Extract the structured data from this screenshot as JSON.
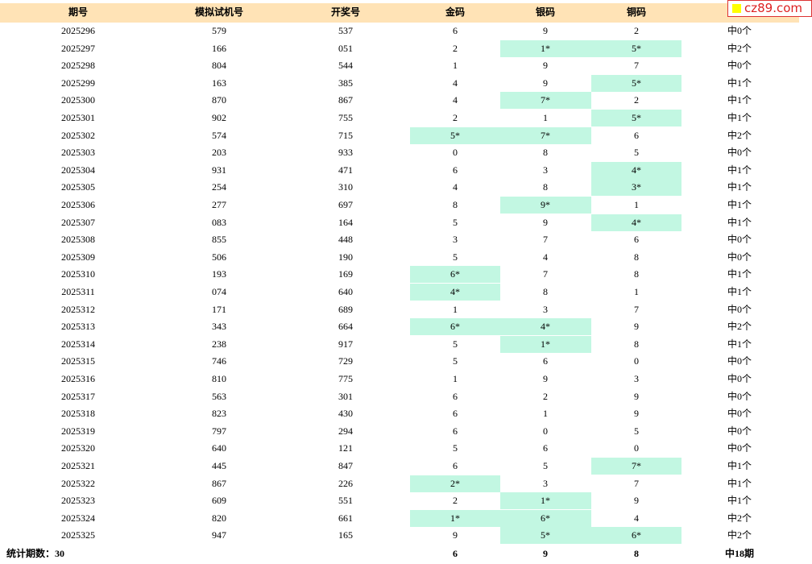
{
  "logo": "cz89.com",
  "table": {
    "header": [
      "期号",
      "模拟试机号",
      "开奖号",
      "金码",
      "银码",
      "铜码"
    ],
    "rows": [
      [
        "2025296",
        "579",
        "537",
        "6",
        "9",
        "2",
        "中0个"
      ],
      [
        "2025297",
        "166",
        "051",
        "2",
        "1*",
        "5*",
        "中2个"
      ],
      [
        "2025298",
        "804",
        "544",
        "1",
        "9",
        "7",
        "中0个"
      ],
      [
        "2025299",
        "163",
        "385",
        "4",
        "9",
        "5*",
        "中1个"
      ],
      [
        "2025300",
        "870",
        "867",
        "4",
        "7*",
        "2",
        "中1个"
      ],
      [
        "2025301",
        "902",
        "755",
        "2",
        "1",
        "5*",
        "中1个"
      ],
      [
        "2025302",
        "574",
        "715",
        "5*",
        "7*",
        "6",
        "中2个"
      ],
      [
        "2025303",
        "203",
        "933",
        "0",
        "8",
        "5",
        "中0个"
      ],
      [
        "2025304",
        "931",
        "471",
        "6",
        "3",
        "4*",
        "中1个"
      ],
      [
        "2025305",
        "254",
        "310",
        "4",
        "8",
        "3*",
        "中1个"
      ],
      [
        "2025306",
        "277",
        "697",
        "8",
        "9*",
        "1",
        "中1个"
      ],
      [
        "2025307",
        "083",
        "164",
        "5",
        "9",
        "4*",
        "中1个"
      ],
      [
        "2025308",
        "855",
        "448",
        "3",
        "7",
        "6",
        "中0个"
      ],
      [
        "2025309",
        "506",
        "190",
        "5",
        "4",
        "8",
        "中0个"
      ],
      [
        "2025310",
        "193",
        "169",
        "6*",
        "7",
        "8",
        "中1个"
      ],
      [
        "2025311",
        "074",
        "640",
        "4*",
        "8",
        "1",
        "中1个"
      ],
      [
        "2025312",
        "171",
        "689",
        "1",
        "3",
        "7",
        "中0个"
      ],
      [
        "2025313",
        "343",
        "664",
        "6*",
        "4*",
        "9",
        "中2个"
      ],
      [
        "2025314",
        "238",
        "917",
        "5",
        "1*",
        "8",
        "中1个"
      ],
      [
        "2025315",
        "746",
        "729",
        "5",
        "6",
        "0",
        "中0个"
      ],
      [
        "2025316",
        "810",
        "775",
        "1",
        "9",
        "3",
        "中0个"
      ],
      [
        "2025317",
        "563",
        "301",
        "6",
        "2",
        "9",
        "中0个"
      ],
      [
        "2025318",
        "823",
        "430",
        "6",
        "1",
        "9",
        "中0个"
      ],
      [
        "2025319",
        "797",
        "294",
        "6",
        "0",
        "5",
        "中0个"
      ],
      [
        "2025320",
        "640",
        "121",
        "5",
        "6",
        "0",
        "中0个"
      ],
      [
        "2025321",
        "445",
        "847",
        "6",
        "5",
        "7*",
        "中1个"
      ],
      [
        "2025322",
        "867",
        "226",
        "2*",
        "3",
        "7",
        "中1个"
      ],
      [
        "2025323",
        "609",
        "551",
        "2",
        "1*",
        "9",
        "中1个"
      ],
      [
        "2025324",
        "820",
        "661",
        "1*",
        "6*",
        "4",
        "中2个"
      ],
      [
        "2025325",
        "947",
        "165",
        "9",
        "5*",
        "6*",
        "中2个"
      ]
    ],
    "footer": {
      "label": "统计期数：30",
      "gold": "6",
      "silver": "9",
      "copper": "8",
      "total": "中18期"
    }
  }
}
